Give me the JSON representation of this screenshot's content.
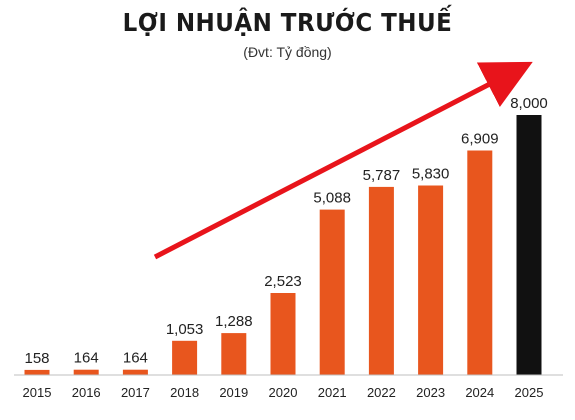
{
  "chart_data": {
    "type": "bar",
    "title": "LỢI NHUẬN TRƯỚC THUẾ",
    "subtitle": "(Đvt: Tỷ đồng)",
    "categories": [
      "2015",
      "2016",
      "2017",
      "2018",
      "2019",
      "2020",
      "2021",
      "2022",
      "2023",
      "2024",
      "2025"
    ],
    "values": [
      158,
      164,
      164,
      1053,
      1288,
      2523,
      5088,
      5787,
      5830,
      6909,
      8000
    ],
    "value_labels": [
      "158",
      "164",
      "164",
      "1,053",
      "1,288",
      "2,523",
      "5,088",
      "5,787",
      "5,830",
      "6,909",
      "8,000"
    ],
    "ylim": [
      0,
      8000
    ],
    "grid": false,
    "colors": {
      "bar": "#e8561e",
      "highlight_bar": "#111111",
      "axis": "#bfbfbf",
      "arrow": "#e8141b"
    },
    "highlight_index": 10,
    "annotations": [
      "trend-arrow"
    ]
  }
}
